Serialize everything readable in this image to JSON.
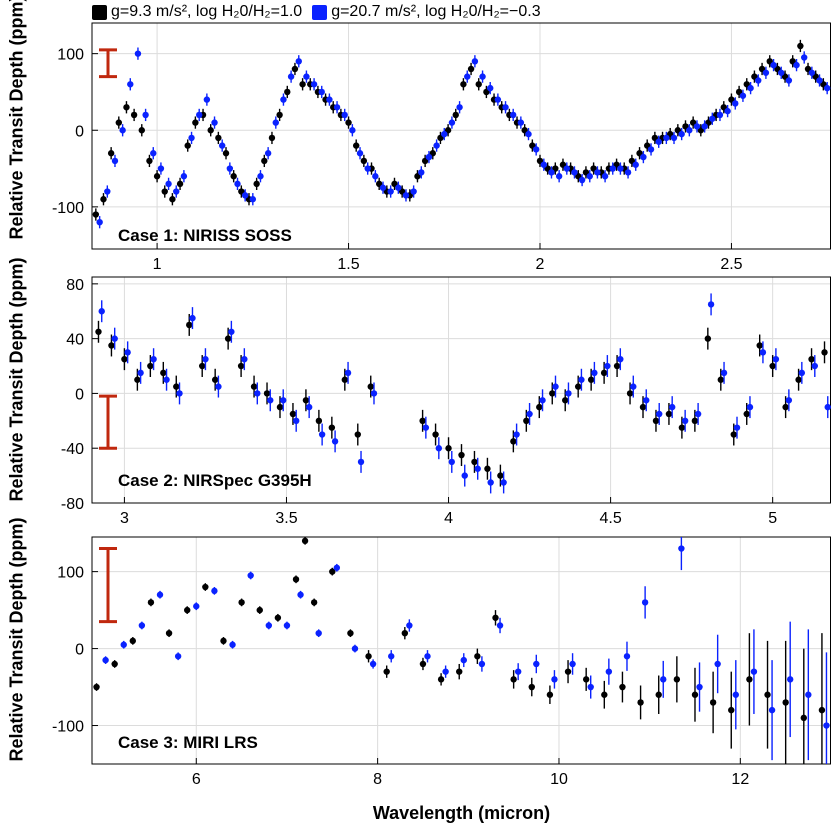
{
  "legend": {
    "black_label": "g=9.3 m/s², log H₂0/H₂=1.0",
    "blue_label": "g=20.7 m/s², log H₂0/H₂=−0.3"
  },
  "colors": {
    "series_a": "#000000",
    "series_b": "#0a22ff",
    "errorbar_scale": "#c0280e",
    "grid": "#dcdcdc"
  },
  "xlabel": "Wavelength (micron)",
  "chart_data": [
    {
      "type": "scatter",
      "case_label": "Case 1: NIRISS SOSS",
      "ylabel": "Relative Transit Depth (ppm)",
      "xlim": [
        0.83,
        2.76
      ],
      "ylim": [
        -155,
        140
      ],
      "xticks": [
        1,
        1.5,
        2,
        2.5
      ],
      "xtick_labels": [
        "1",
        "1.5",
        "2",
        "2.5"
      ],
      "yticks": [
        -100,
        0,
        100
      ],
      "ytick_labels": [
        "-100",
        "0",
        "100"
      ],
      "scale_bar": [
        70,
        105
      ],
      "series": [
        {
          "name": "g=9.3 m/s², log H₂0/H₂=1.0",
          "color": "#000000",
          "err": 8,
          "x": [
            0.84,
            0.86,
            0.88,
            0.9,
            0.92,
            0.94,
            0.96,
            0.98,
            1.0,
            1.02,
            1.04,
            1.06,
            1.08,
            1.1,
            1.12,
            1.14,
            1.16,
            1.18,
            1.2,
            1.22,
            1.24,
            1.26,
            1.28,
            1.3,
            1.32,
            1.34,
            1.36,
            1.38,
            1.4,
            1.42,
            1.44,
            1.46,
            1.48,
            1.5,
            1.52,
            1.54,
            1.56,
            1.58,
            1.6,
            1.62,
            1.64,
            1.66,
            1.68,
            1.7,
            1.72,
            1.74,
            1.76,
            1.78,
            1.8,
            1.82,
            1.84,
            1.86,
            1.88,
            1.9,
            1.92,
            1.94,
            1.96,
            1.98,
            2.0,
            2.02,
            2.04,
            2.06,
            2.08,
            2.1,
            2.12,
            2.14,
            2.16,
            2.18,
            2.2,
            2.22,
            2.24,
            2.26,
            2.28,
            2.3,
            2.32,
            2.34,
            2.36,
            2.38,
            2.4,
            2.42,
            2.44,
            2.46,
            2.48,
            2.5,
            2.52,
            2.54,
            2.56,
            2.58,
            2.6,
            2.62,
            2.64,
            2.66,
            2.68,
            2.7,
            2.72,
            2.74
          ],
          "y": [
            -110,
            -90,
            -30,
            10,
            30,
            20,
            0,
            -40,
            -60,
            -80,
            -90,
            -70,
            -20,
            10,
            20,
            0,
            -10,
            -30,
            -60,
            -80,
            -90,
            -70,
            -40,
            -10,
            20,
            50,
            80,
            60,
            60,
            50,
            40,
            30,
            20,
            10,
            -20,
            -40,
            -50,
            -70,
            -80,
            -70,
            -80,
            -85,
            -60,
            -40,
            -30,
            -10,
            0,
            20,
            60,
            80,
            60,
            50,
            40,
            30,
            20,
            10,
            0,
            -20,
            -40,
            -50,
            -50,
            -45,
            -50,
            -60,
            -55,
            -50,
            -55,
            -50,
            -45,
            -50,
            -40,
            -30,
            -20,
            -10,
            -10,
            -5,
            0,
            5,
            10,
            0,
            10,
            20,
            30,
            40,
            50,
            60,
            70,
            80,
            90,
            80,
            70,
            90,
            110,
            80,
            70,
            60
          ]
        },
        {
          "name": "g=20.7 m/s², log H₂0/H₂=−0.3",
          "color": "#0a22ff",
          "err": 8,
          "x": [
            0.85,
            0.87,
            0.89,
            0.91,
            0.93,
            0.95,
            0.97,
            0.99,
            1.01,
            1.03,
            1.05,
            1.07,
            1.09,
            1.11,
            1.13,
            1.15,
            1.17,
            1.19,
            1.21,
            1.23,
            1.25,
            1.27,
            1.29,
            1.31,
            1.33,
            1.35,
            1.37,
            1.39,
            1.41,
            1.43,
            1.45,
            1.47,
            1.49,
            1.51,
            1.53,
            1.55,
            1.57,
            1.59,
            1.61,
            1.63,
            1.65,
            1.67,
            1.69,
            1.71,
            1.73,
            1.75,
            1.77,
            1.79,
            1.81,
            1.83,
            1.85,
            1.87,
            1.89,
            1.91,
            1.93,
            1.95,
            1.97,
            1.99,
            2.01,
            2.03,
            2.05,
            2.07,
            2.09,
            2.11,
            2.13,
            2.15,
            2.17,
            2.19,
            2.21,
            2.23,
            2.25,
            2.27,
            2.29,
            2.31,
            2.33,
            2.35,
            2.37,
            2.39,
            2.41,
            2.43,
            2.45,
            2.47,
            2.49,
            2.51,
            2.53,
            2.55,
            2.57,
            2.59,
            2.61,
            2.63,
            2.65,
            2.67,
            2.69,
            2.71,
            2.73,
            2.75
          ],
          "y": [
            -120,
            -80,
            -40,
            0,
            60,
            100,
            20,
            -30,
            -50,
            -70,
            -80,
            -60,
            -10,
            20,
            40,
            10,
            -20,
            -50,
            -70,
            -85,
            -90,
            -60,
            -30,
            10,
            40,
            70,
            90,
            70,
            60,
            50,
            40,
            30,
            20,
            0,
            -30,
            -50,
            -60,
            -75,
            -80,
            -75,
            -85,
            -80,
            -55,
            -35,
            -20,
            -5,
            10,
            30,
            70,
            90,
            70,
            55,
            40,
            30,
            20,
            10,
            -5,
            -25,
            -45,
            -55,
            -60,
            -50,
            -55,
            -65,
            -60,
            -55,
            -60,
            -50,
            -50,
            -55,
            -45,
            -35,
            -25,
            -15,
            -10,
            -10,
            -5,
            0,
            5,
            5,
            15,
            20,
            25,
            35,
            45,
            55,
            65,
            75,
            85,
            75,
            65,
            85,
            95,
            75,
            65,
            55
          ]
        }
      ]
    },
    {
      "type": "scatter",
      "case_label": "Case 2: NIRSpec G395H",
      "ylabel": "Relative Transit Depth (ppm)",
      "xlim": [
        2.9,
        5.18
      ],
      "ylim": [
        -80,
        85
      ],
      "xticks": [
        3,
        3.5,
        4,
        4.5,
        5
      ],
      "xtick_labels": [
        "3",
        "3.5",
        "4",
        "4.5",
        "5"
      ],
      "yticks": [
        -80,
        -40,
        0,
        40,
        80
      ],
      "ytick_labels": [
        "-80",
        "-40",
        "0",
        "40",
        "80"
      ],
      "scale_bar": [
        -40,
        -2
      ],
      "series": [
        {
          "name": "g=9.3 m/s², log H₂0/H₂=1.0",
          "color": "#000000",
          "err": 8,
          "x": [
            2.92,
            2.96,
            3.0,
            3.04,
            3.08,
            3.12,
            3.16,
            3.2,
            3.24,
            3.28,
            3.32,
            3.36,
            3.4,
            3.44,
            3.48,
            3.52,
            3.56,
            3.6,
            3.64,
            3.68,
            3.72,
            3.76,
            3.92,
            3.96,
            4.0,
            4.04,
            4.08,
            4.12,
            4.16,
            4.2,
            4.24,
            4.28,
            4.32,
            4.36,
            4.4,
            4.44,
            4.48,
            4.52,
            4.56,
            4.6,
            4.64,
            4.68,
            4.72,
            4.76,
            4.8,
            4.84,
            4.88,
            4.92,
            4.96,
            5.0,
            5.04,
            5.08,
            5.12,
            5.16
          ],
          "y": [
            45,
            35,
            25,
            10,
            20,
            15,
            5,
            50,
            20,
            10,
            40,
            20,
            5,
            0,
            -10,
            -15,
            -5,
            -20,
            -25,
            10,
            -30,
            5,
            -20,
            -30,
            -40,
            -45,
            -50,
            -55,
            -60,
            -35,
            -20,
            -10,
            0,
            -5,
            5,
            10,
            15,
            20,
            0,
            -10,
            -20,
            -15,
            -25,
            -20,
            40,
            10,
            -30,
            -15,
            35,
            20,
            -10,
            10,
            25,
            30
          ]
        },
        {
          "name": "g=20.7 m/s², log H₂0/H₂=−0.3",
          "color": "#0a22ff",
          "err": 8,
          "x": [
            2.93,
            2.97,
            3.01,
            3.05,
            3.09,
            3.13,
            3.17,
            3.21,
            3.25,
            3.29,
            3.33,
            3.37,
            3.41,
            3.45,
            3.49,
            3.53,
            3.57,
            3.61,
            3.65,
            3.69,
            3.73,
            3.77,
            3.93,
            3.97,
            4.01,
            4.05,
            4.09,
            4.13,
            4.17,
            4.21,
            4.25,
            4.29,
            4.33,
            4.37,
            4.41,
            4.45,
            4.49,
            4.53,
            4.57,
            4.61,
            4.65,
            4.69,
            4.73,
            4.77,
            4.81,
            4.85,
            4.89,
            4.93,
            4.97,
            5.01,
            5.05,
            5.09,
            5.13,
            5.17
          ],
          "y": [
            60,
            40,
            30,
            15,
            25,
            10,
            0,
            55,
            25,
            5,
            45,
            25,
            0,
            -5,
            -5,
            -20,
            -10,
            -30,
            -35,
            15,
            -50,
            0,
            -25,
            -40,
            -50,
            -60,
            -55,
            -65,
            -65,
            -30,
            -15,
            -5,
            5,
            0,
            10,
            15,
            20,
            25,
            5,
            -5,
            -15,
            -10,
            -20,
            -15,
            65,
            15,
            -25,
            -10,
            30,
            25,
            -5,
            15,
            20,
            -10
          ]
        }
      ]
    },
    {
      "type": "scatter",
      "case_label": "Case 3: MIRI LRS",
      "ylabel": "Relative Transit Depth (ppm)",
      "xlim": [
        4.85,
        13.0
      ],
      "ylim": [
        -150,
        145
      ],
      "xticks": [
        6,
        8,
        10,
        12
      ],
      "xtick_labels": [
        "6",
        "8",
        "10",
        "12"
      ],
      "yticks": [
        -100,
        0,
        100
      ],
      "ytick_labels": [
        "-100",
        "0",
        "100"
      ],
      "scale_bar": [
        35,
        130
      ],
      "series": [
        {
          "name": "g=9.3 m/s², log H₂0/H₂=1.0",
          "color": "#000000",
          "x": [
            4.9,
            5.1,
            5.3,
            5.5,
            5.7,
            5.9,
            6.1,
            6.3,
            6.5,
            6.7,
            6.9,
            7.1,
            7.2,
            7.3,
            7.5,
            7.7,
            7.9,
            8.1,
            8.3,
            8.5,
            8.7,
            8.9,
            9.1,
            9.3,
            9.5,
            9.7,
            9.9,
            10.1,
            10.3,
            10.5,
            10.7,
            10.9,
            11.1,
            11.3,
            11.5,
            11.7,
            11.9,
            12.1,
            12.3,
            12.5,
            12.7,
            12.9
          ],
          "y": [
            -50,
            -20,
            10,
            60,
            20,
            50,
            80,
            10,
            60,
            50,
            40,
            90,
            140,
            60,
            100,
            20,
            -10,
            -30,
            20,
            -20,
            -40,
            -30,
            -10,
            40,
            -40,
            -50,
            -60,
            -30,
            -40,
            -60,
            -50,
            -70,
            -60,
            -40,
            -60,
            -70,
            -80,
            -40,
            -60,
            -70,
            -90,
            -80
          ],
          "err": [
            5,
            5,
            5,
            5,
            5,
            5,
            5,
            5,
            5,
            5,
            5,
            5,
            5,
            5,
            5,
            5,
            8,
            8,
            8,
            8,
            8,
            10,
            10,
            10,
            12,
            12,
            12,
            15,
            15,
            18,
            20,
            22,
            25,
            30,
            35,
            40,
            50,
            60,
            70,
            80,
            90,
            100
          ]
        },
        {
          "name": "g=20.7 m/s², log H₂0/H₂=−0.3",
          "color": "#0a22ff",
          "x": [
            5.0,
            5.2,
            5.4,
            5.6,
            5.8,
            6.0,
            6.2,
            6.4,
            6.6,
            6.8,
            7.0,
            7.15,
            7.35,
            7.55,
            7.75,
            7.95,
            8.15,
            8.35,
            8.55,
            8.75,
            8.95,
            9.15,
            9.35,
            9.55,
            9.75,
            9.95,
            10.15,
            10.35,
            10.55,
            10.75,
            10.95,
            11.15,
            11.35,
            11.55,
            11.75,
            11.95,
            12.15,
            12.35,
            12.55,
            12.75,
            12.95
          ],
          "y": [
            -15,
            5,
            30,
            70,
            -10,
            55,
            75,
            5,
            95,
            30,
            30,
            70,
            20,
            105,
            0,
            -20,
            -10,
            30,
            -10,
            -30,
            -15,
            -20,
            30,
            -30,
            -20,
            -40,
            -20,
            -50,
            -30,
            -10,
            60,
            -40,
            130,
            -50,
            -20,
            -60,
            -30,
            -80,
            -40,
            -60,
            -100
          ],
          "err": [
            5,
            5,
            5,
            5,
            5,
            5,
            5,
            5,
            5,
            5,
            5,
            5,
            5,
            5,
            5,
            6,
            8,
            8,
            8,
            8,
            9,
            10,
            10,
            11,
            12,
            12,
            14,
            15,
            17,
            19,
            21,
            24,
            28,
            32,
            38,
            45,
            55,
            65,
            75,
            85,
            95
          ]
        }
      ]
    }
  ]
}
